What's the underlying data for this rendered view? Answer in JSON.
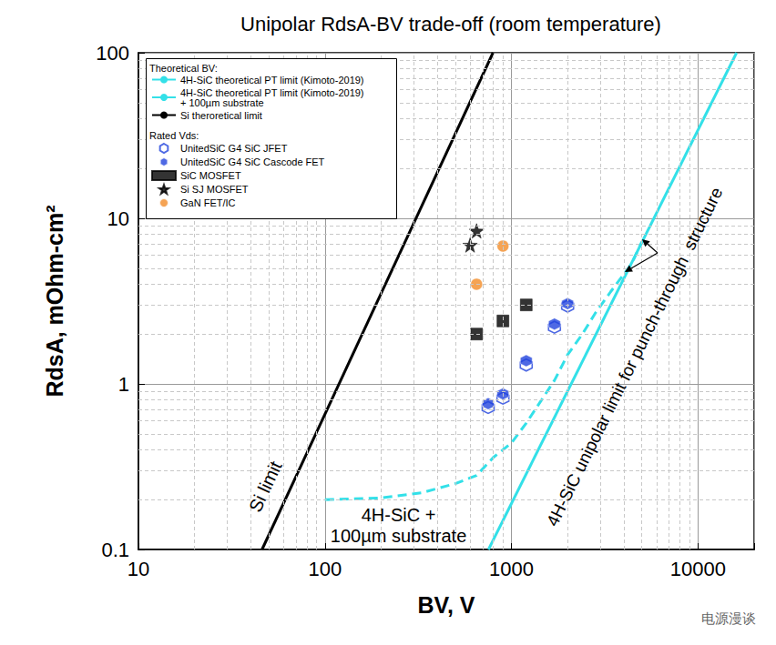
{
  "chart_data": {
    "type": "scatter",
    "title": "Unipolar RdsA-BV trade-off (room temperature)",
    "x_label": "BV, V",
    "y_label": "RdsA, mOhm-cm²",
    "log": true,
    "grid": true,
    "xlim": [
      10,
      20000
    ],
    "xticks": [
      10,
      100,
      1000,
      10000
    ],
    "ylim": [
      0.1,
      100
    ],
    "yticks": [
      0.1,
      1,
      10,
      100
    ],
    "legend": "upper left",
    "legend_titles": [
      "Theoretical BV:",
      "Rated Vds:"
    ],
    "series": [
      {
        "name": "4H-SiC theoretical PT limit (Kimoto-2019)",
        "type": "line",
        "line_style": "solid",
        "color": "#33e0e8",
        "legend_group": 0,
        "x": [
          753,
          16100
        ],
        "values": [
          0.1,
          100
        ]
      },
      {
        "name": "4H-SiC theoretical PT limit (Kimoto-2019)\n+ 100µm substrate",
        "type": "line",
        "line_style": "dashed",
        "color": "#33e0e8",
        "legend_group": 0,
        "x": [
          100,
          200,
          330,
          500,
          650,
          800,
          1000,
          1200,
          1450,
          1700,
          2000,
          2400,
          2800,
          3400,
          4400,
          5000
        ],
        "values": [
          0.2,
          0.205,
          0.22,
          0.25,
          0.28,
          0.36,
          0.44,
          0.58,
          0.8,
          1.05,
          1.5,
          2.0,
          2.65,
          3.6,
          5.3,
          7.2
        ]
      },
      {
        "name": "Si theroretical limit",
        "type": "line",
        "line_style": "solid",
        "color": "#000000",
        "legend_group": 0,
        "x": [
          46,
          796
        ],
        "values": [
          0.1,
          100
        ]
      },
      {
        "name": "UnitedSiC G4 SiC JFET",
        "type": "scatter",
        "marker": "hexagon_open",
        "color": "#2244dd",
        "legend_group": 1,
        "x": [
          750,
          900,
          1200,
          1700,
          2000
        ],
        "values": [
          0.72,
          0.82,
          1.3,
          2.2,
          2.95
        ]
      },
      {
        "name": "UnitedSiC G4 SiC Cascode FET",
        "type": "scatter",
        "marker": "hexagon",
        "color": "#2244dd",
        "legend_group": 1,
        "x": [
          750,
          900,
          1200,
          1700,
          2000
        ],
        "values": [
          0.76,
          0.87,
          1.38,
          2.3,
          3.05
        ]
      },
      {
        "name": "SiC MOSFET",
        "type": "scatter",
        "marker": "square",
        "color": "#000000",
        "legend_group": 1,
        "x": [
          650,
          900,
          1200
        ],
        "values": [
          2.0,
          2.4,
          3.0
        ]
      },
      {
        "name": "Si SJ MOSFET",
        "type": "scatter",
        "marker": "star",
        "color": "#000000",
        "legend_group": 1,
        "x": [
          600,
          650
        ],
        "values": [
          6.9,
          8.4
        ]
      },
      {
        "name": "GaN FET/IC",
        "type": "scatter",
        "marker": "circle",
        "color": "#f28c28",
        "legend_group": 1,
        "x": [
          650,
          900
        ],
        "values": [
          4.0,
          6.8
        ]
      }
    ],
    "annotations": [
      {
        "text": "Si limit",
        "x": 47.9,
        "y": 0.24
      },
      {
        "text": "4H-SiC +\n100µm substrate",
        "x": 248,
        "y": 0.139
      },
      {
        "text": "4H-SiC unipolar limit for punch-through  structure",
        "x": 4570,
        "y": 1.46
      }
    ],
    "watermark": "电源漫谈"
  }
}
